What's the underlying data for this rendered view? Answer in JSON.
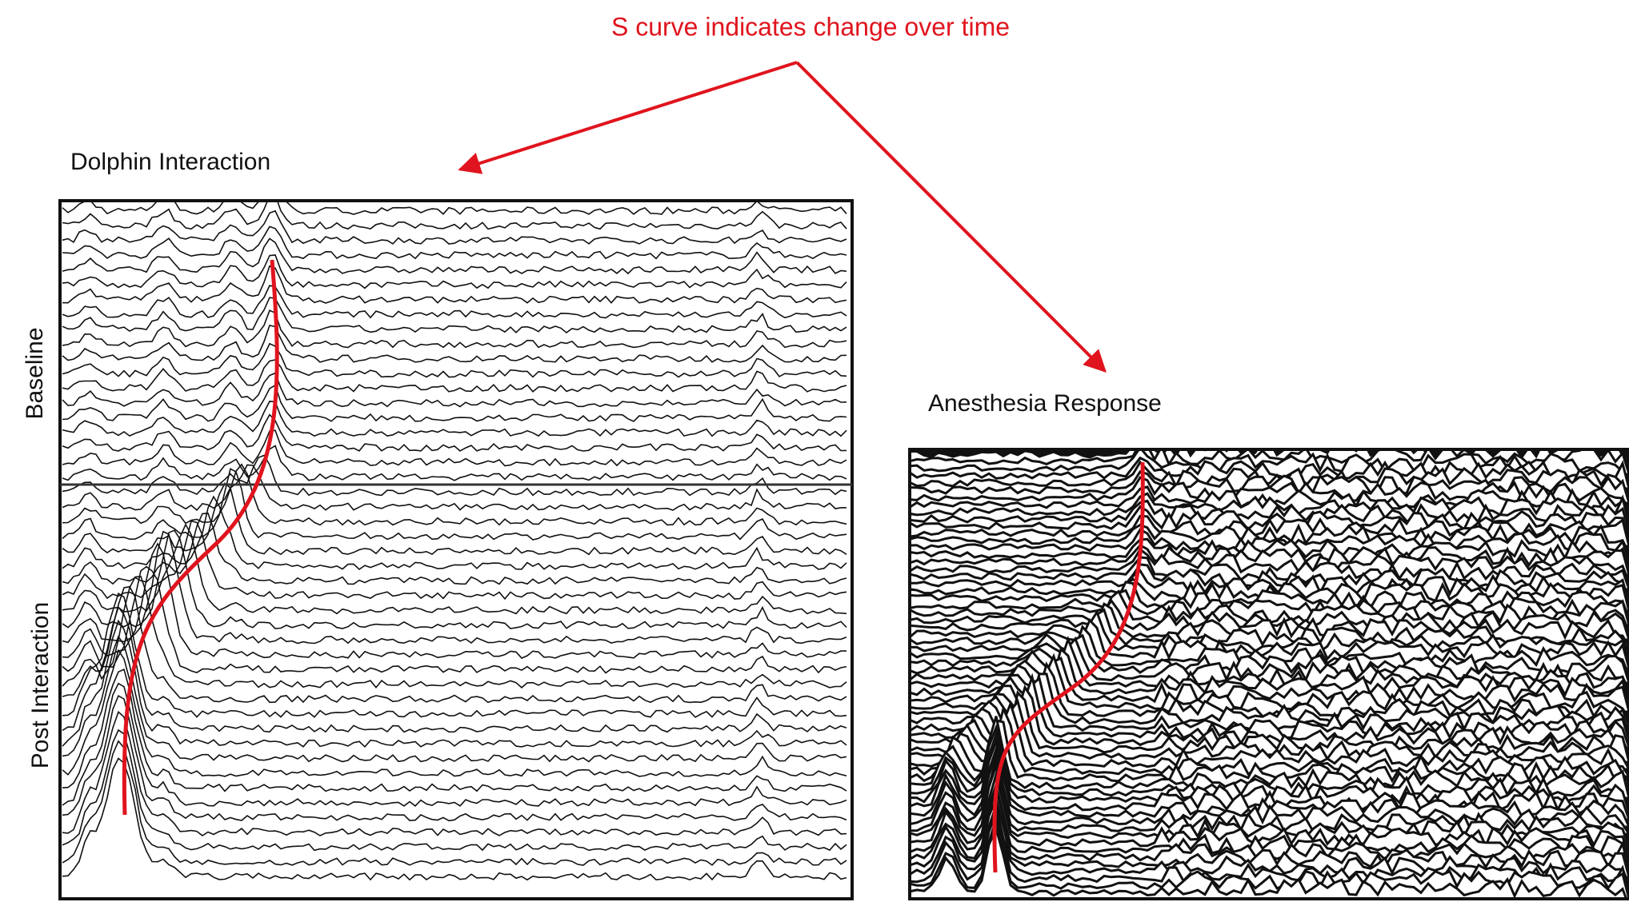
{
  "annotation": "S curve indicates change over time",
  "panels": [
    {
      "title": "Dolphin Interaction",
      "labels": [
        "Baseline",
        "Post Interaction"
      ]
    },
    {
      "title": "Anesthesia Response"
    }
  ]
}
